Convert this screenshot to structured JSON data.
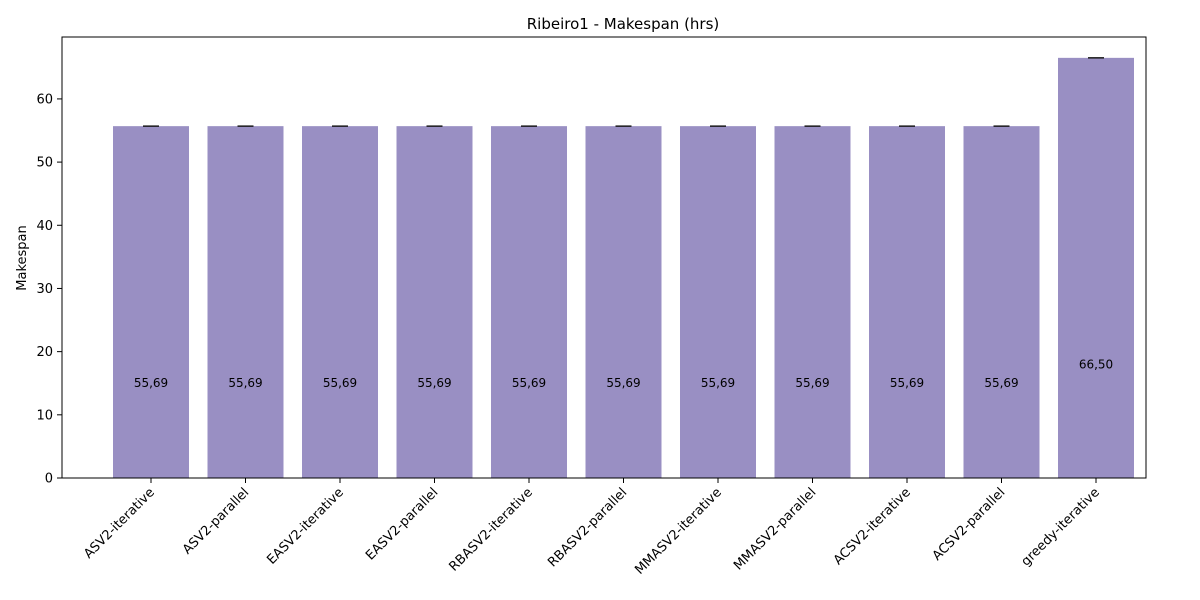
{
  "chart_data": {
    "type": "bar",
    "title": "Ribeiro1 - Makespan (hrs)",
    "xlabel": "",
    "ylabel": "Makespan",
    "categories": [
      "ASV2-iterative",
      "ASV2-parallel",
      "EASV2-iterative",
      "EASV2-parallel",
      "RBASV2-iterative",
      "RBASV2-parallel",
      "MMASV2-iterative",
      "MMASV2-parallel",
      "ACSV2-iterative",
      "ACSV2-parallel",
      "greedy-iterative"
    ],
    "values": [
      55.69,
      55.69,
      55.69,
      55.69,
      55.69,
      55.69,
      55.69,
      55.69,
      55.69,
      55.69,
      66.5
    ],
    "data_labels": [
      "55,69",
      "55,69",
      "55,69",
      "55,69",
      "55,69",
      "55,69",
      "55,69",
      "55,69",
      "55,69",
      "55,69",
      "66,50"
    ],
    "error": [
      0,
      0,
      0,
      0,
      0,
      0,
      0,
      0,
      0,
      0,
      0
    ],
    "ylim": [
      0,
      69.8
    ],
    "yticks": [
      0,
      10,
      20,
      30,
      40,
      50,
      60
    ],
    "bar_color": "#998fc3",
    "grid": false,
    "legend": "none"
  }
}
